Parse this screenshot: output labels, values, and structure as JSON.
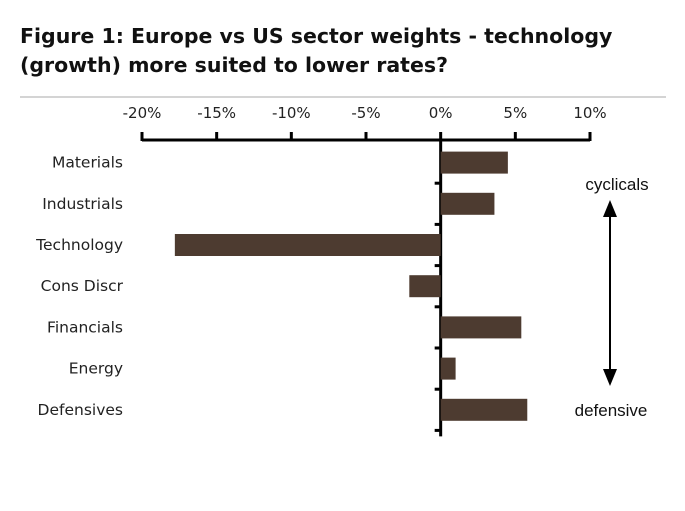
{
  "chart_data": {
    "type": "bar",
    "orientation": "horizontal",
    "title": "Figure 1: Europe vs US sector weights  - technology (growth) more suited to lower rates?",
    "categories": [
      "Materials",
      "Industrials",
      "Technology",
      "Cons Discr",
      "Financials",
      "Energy",
      "Defensives"
    ],
    "values": [
      4.5,
      3.6,
      -17.8,
      -2.1,
      5.4,
      1.0,
      5.8
    ],
    "unit": "%",
    "xlim": [
      -20,
      10
    ],
    "xticks": [
      -20,
      -15,
      -10,
      -5,
      0,
      5,
      10
    ],
    "xtick_labels": [
      "-20%",
      "-15%",
      "-10%",
      "-5%",
      "0%",
      "5%",
      "10%"
    ],
    "xlabel": "",
    "ylabel": "",
    "grid": false,
    "bar_color": "#4d3b30",
    "annotations": {
      "top": "cyclicals",
      "bottom": "defensive",
      "arrow": "double-headed vertical"
    }
  }
}
